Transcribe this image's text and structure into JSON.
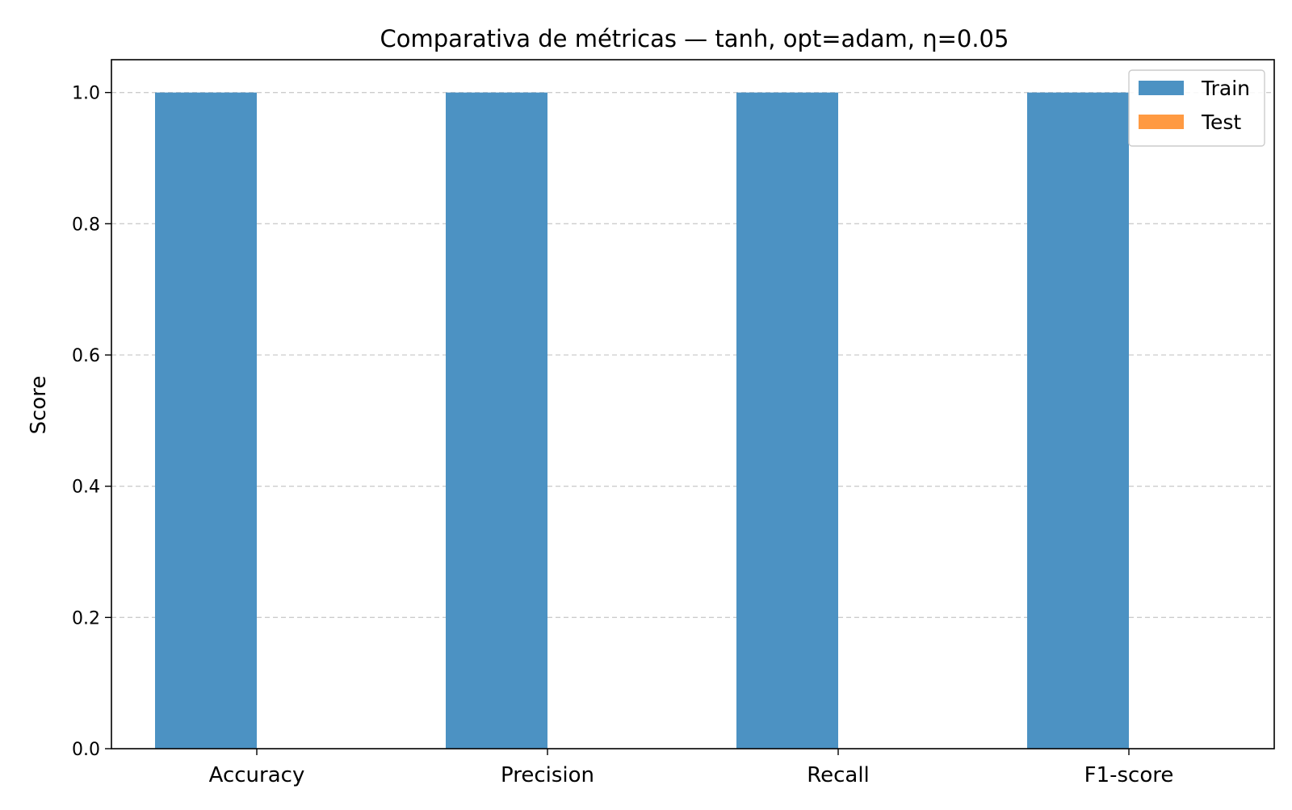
{
  "chart_data": {
    "type": "bar",
    "title": "Comparativa de métricas — tanh, opt=adam, η=0.05",
    "xlabel": "",
    "ylabel": "Score",
    "categories": [
      "Accuracy",
      "Precision",
      "Recall",
      "F1-score"
    ],
    "series": [
      {
        "name": "Train",
        "values": [
          1.0,
          1.0,
          1.0,
          1.0
        ],
        "color": "#4c92c3"
      },
      {
        "name": "Test",
        "values": [
          0.0,
          0.0,
          0.0,
          0.0
        ],
        "color": "#ff9a42"
      }
    ],
    "ylim": [
      0,
      1.05
    ],
    "yticks": [
      "0.0",
      "0.2",
      "0.4",
      "0.6",
      "0.8",
      "1.0"
    ],
    "grid": "y, dashed",
    "legend_position": "top-right"
  }
}
